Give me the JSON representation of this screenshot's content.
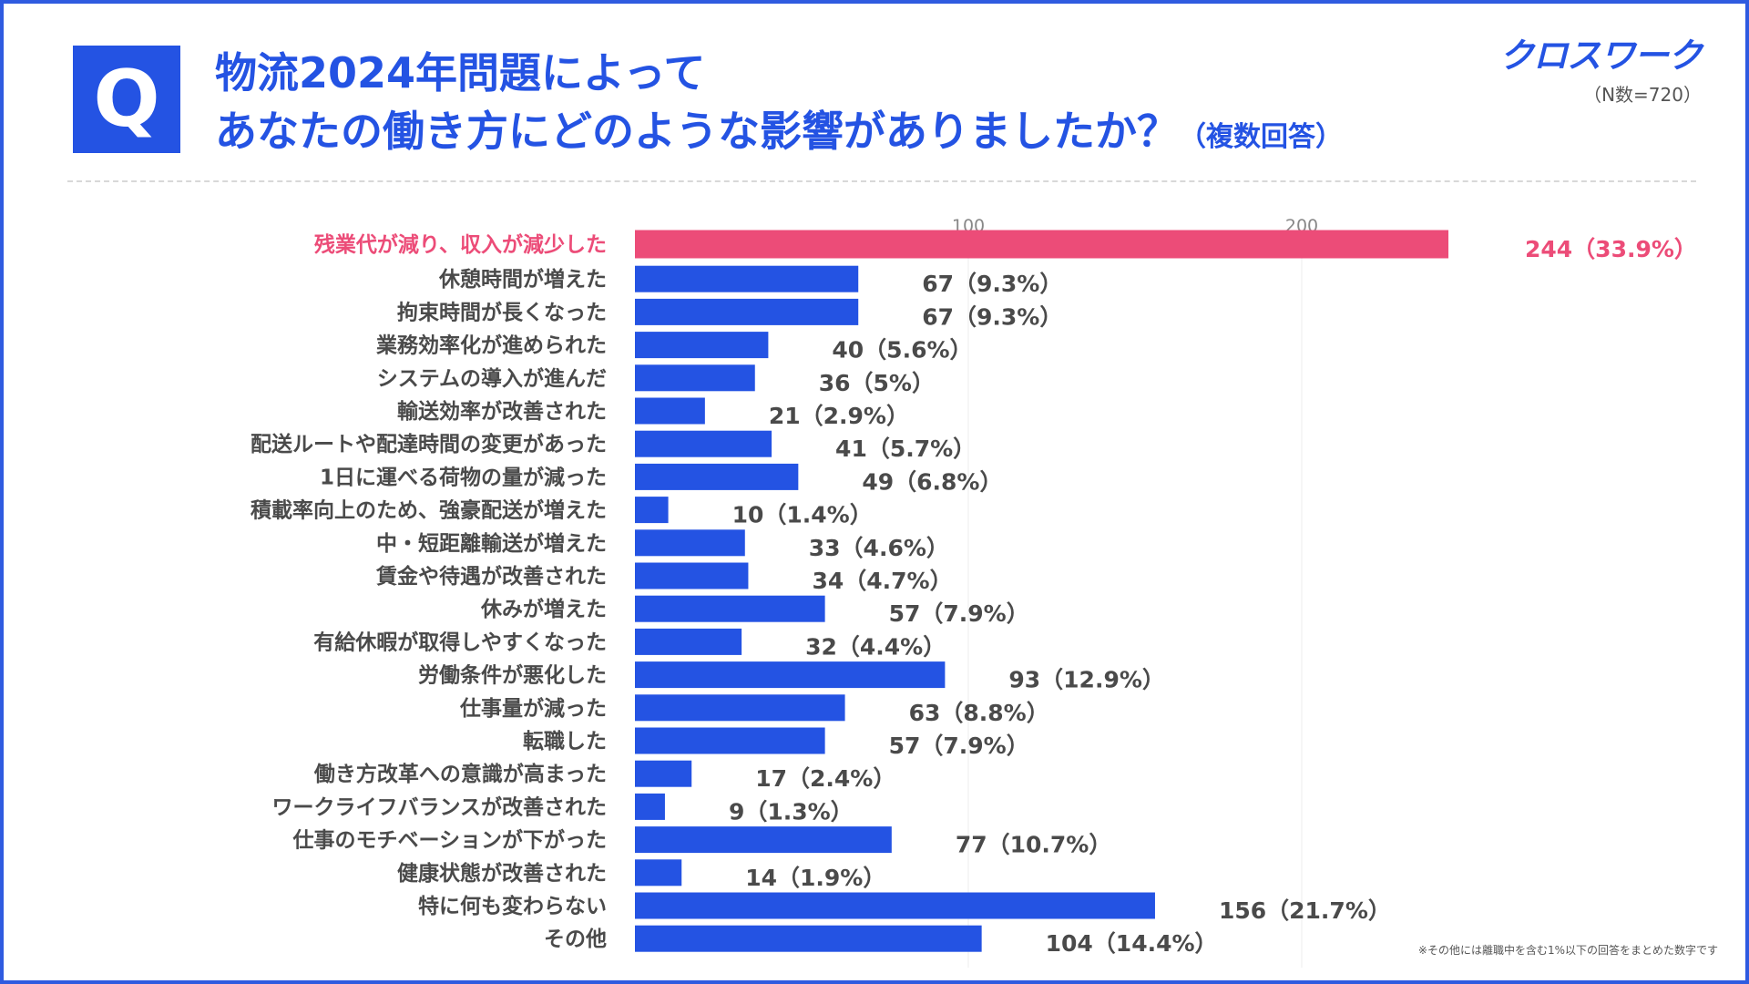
{
  "header": {
    "q_letter": "Q",
    "title_line1": "物流2024年問題によって",
    "title_line2": "あなたの働き方にどのような影響がありましたか？",
    "title_suffix": "（複数回答）",
    "brand": "クロスワーク",
    "sample_note": "（N数=720）"
  },
  "colors": {
    "accent": "#2453e3",
    "highlight": "#ec4c78",
    "bar": "#2453e3"
  },
  "footnote": "※その他には離職中を含む1%以下の回答をまとめた数字です",
  "chart_data": {
    "type": "bar",
    "orientation": "horizontal",
    "categories": [
      "残業代が減り、収入が減少した",
      "休憩時間が増えた",
      "拘束時間が長くなった",
      "業務効率化が進められた",
      "システムの導入が進んだ",
      "輸送効率が改善された",
      "配送ルートや配達時間の変更があった",
      "1日に運べる荷物の量が減った",
      "積載率向上のため、強豪配送が増えた",
      "中・短距離輸送が増えた",
      "賃金や待遇が改善された",
      "休みが増えた",
      "有給休暇が取得しやすくなった",
      "労働条件が悪化した",
      "仕事量が減った",
      "転職した",
      "働き方改革への意識が高まった",
      "ワークライフバランスが改善された",
      "仕事のモチベーションが下がった",
      "健康状態が改善された",
      "特に何も変わらない",
      "その他"
    ],
    "values": [
      244,
      67,
      67,
      40,
      36,
      21,
      41,
      49,
      10,
      33,
      34,
      57,
      32,
      93,
      63,
      57,
      17,
      9,
      77,
      14,
      156,
      104
    ],
    "labels": [
      "244（33.9%）",
      "67（9.3%）",
      "67（9.3%）",
      "40（5.6%）",
      "36（5%）",
      "21（2.9%）",
      "41（5.7%）",
      "49（6.8%）",
      "10（1.4%）",
      "33（4.6%）",
      "34（4.7%）",
      "57（7.9%）",
      "32（4.4%）",
      "93（12.9%）",
      "63（8.8%）",
      "57（7.9%）",
      "17（2.4%）",
      "9（1.3%）",
      "77（10.7%）",
      "14（1.9%）",
      "156（21.7%）",
      "104（14.4%）"
    ],
    "highlight_index": 0,
    "xticks": [
      100,
      200
    ],
    "xlim": [
      0,
      244
    ],
    "title": "",
    "xlabel": "",
    "ylabel": ""
  }
}
